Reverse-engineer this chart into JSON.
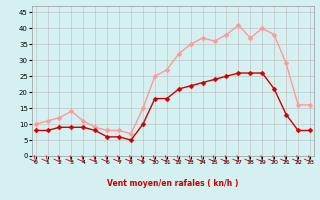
{
  "x": [
    0,
    1,
    2,
    3,
    4,
    5,
    6,
    7,
    8,
    9,
    10,
    11,
    12,
    13,
    14,
    15,
    16,
    17,
    18,
    19,
    20,
    21,
    22,
    23
  ],
  "mean_wind": [
    8,
    8,
    9,
    9,
    9,
    8,
    6,
    6,
    5,
    10,
    18,
    18,
    21,
    22,
    23,
    24,
    25,
    26,
    26,
    26,
    21,
    13,
    8,
    8
  ],
  "gust_wind": [
    10,
    11,
    12,
    14,
    11,
    9,
    8,
    8,
    7,
    15,
    25,
    27,
    32,
    35,
    37,
    36,
    38,
    41,
    37,
    40,
    38,
    29,
    16,
    16
  ],
  "mean_color": "#cc0000",
  "gust_color": "#ff9999",
  "bg_color": "#d4f0f0",
  "grid_color": "#bbbbbb",
  "xlabel": "Vent moyen/en rafales ( kn/h )",
  "xlabel_color": "#cc0000",
  "ylabel_ticks": [
    0,
    5,
    10,
    15,
    20,
    25,
    30,
    35,
    40,
    45
  ],
  "ylim": [
    0,
    47
  ],
  "xlim": [
    -0.3,
    23.3
  ],
  "markersize": 2.5,
  "linewidth": 1.0
}
